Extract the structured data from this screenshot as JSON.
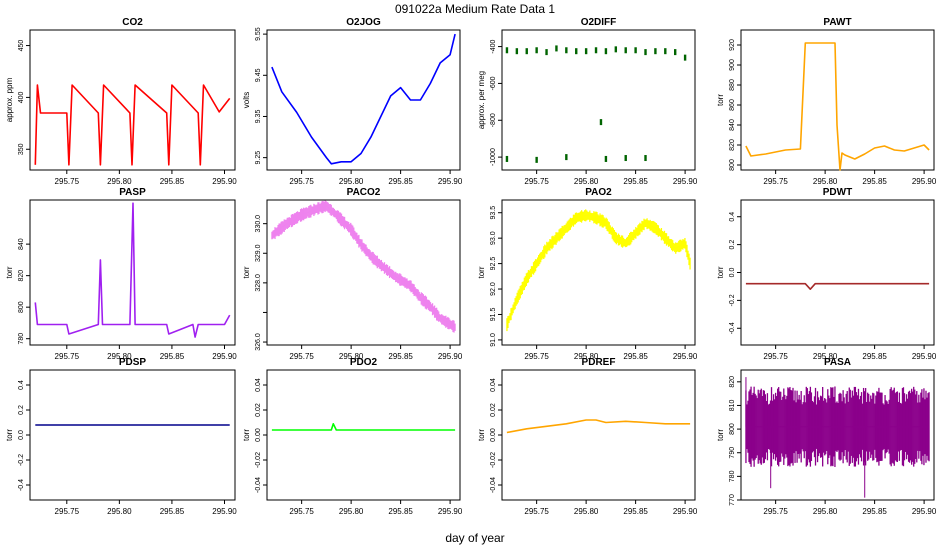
{
  "figure": {
    "title": "091022a   Medium Rate Data 1",
    "xlabel": "day of year"
  },
  "chart_data": [
    {
      "type": "line",
      "title": "CO2",
      "ylabel": "approx. ppm",
      "color": "#ff0000",
      "xlim": [
        295.715,
        295.91
      ],
      "ylim": [
        330,
        465
      ],
      "xticks": [
        295.75,
        295.8,
        295.85,
        295.9
      ],
      "xticklabels": [
        "295.75",
        "295.80",
        "295.85",
        "295.90"
      ],
      "yticks": [
        350,
        400,
        450
      ],
      "yticklabels": [
        "350",
        "400",
        "450"
      ],
      "x": [
        295.72,
        295.722,
        295.725,
        295.75,
        295.752,
        295.755,
        295.78,
        295.782,
        295.785,
        295.81,
        295.812,
        295.815,
        295.845,
        295.847,
        295.85,
        295.875,
        295.877,
        295.88,
        295.895,
        295.905
      ],
      "y": [
        335,
        412,
        385,
        385,
        335,
        412,
        385,
        335,
        412,
        385,
        335,
        412,
        385,
        335,
        412,
        385,
        335,
        412,
        386,
        399
      ]
    },
    {
      "type": "line",
      "title": "O2JOG",
      "ylabel": "volts",
      "color": "#0000ff",
      "xlim": [
        295.715,
        295.91
      ],
      "ylim": [
        9.22,
        9.56
      ],
      "xticks": [
        295.75,
        295.8,
        295.85,
        295.9
      ],
      "xticklabels": [
        "295.75",
        "295.80",
        "295.85",
        "295.90"
      ],
      "yticks": [
        9.25,
        9.35,
        9.45,
        9.55
      ],
      "yticklabels": [
        "9.25",
        "9.35",
        "9.45",
        "9.55"
      ],
      "x": [
        295.72,
        295.73,
        295.745,
        295.76,
        295.775,
        295.78,
        295.79,
        295.8,
        295.81,
        295.82,
        295.83,
        295.84,
        295.85,
        295.86,
        295.87,
        295.88,
        295.89,
        295.9,
        295.905
      ],
      "y": [
        9.47,
        9.41,
        9.36,
        9.3,
        9.25,
        9.235,
        9.24,
        9.24,
        9.26,
        9.3,
        9.35,
        9.4,
        9.42,
        9.39,
        9.39,
        9.43,
        9.48,
        9.5,
        9.55
      ]
    },
    {
      "type": "scatter",
      "title": "O2DIFF",
      "ylabel": "approx. per meg",
      "color": "#006400",
      "xlim": [
        295.715,
        295.91
      ],
      "ylim": [
        -1070,
        -310
      ],
      "xticks": [
        295.75,
        295.8,
        295.85,
        295.9
      ],
      "xticklabels": [
        "295.75",
        "295.80",
        "295.85",
        "295.90"
      ],
      "yticks": [
        -400,
        -600,
        -800,
        -1000
      ],
      "yticklabels": [
        "-400",
        "-600",
        "-800",
        "-1000"
      ],
      "x": [
        295.72,
        295.73,
        295.74,
        295.75,
        295.76,
        295.77,
        295.78,
        295.79,
        295.8,
        295.81,
        295.82,
        295.83,
        295.84,
        295.85,
        295.86,
        295.87,
        295.88,
        295.89,
        295.9,
        295.72,
        295.75,
        295.78,
        295.82,
        295.84,
        295.86,
        295.815
      ],
      "y": [
        -420,
        -425,
        -425,
        -420,
        -430,
        -410,
        -420,
        -425,
        -425,
        -420,
        -425,
        -415,
        -420,
        -420,
        -430,
        -425,
        -425,
        -430,
        -460,
        -1010,
        -1015,
        -1000,
        -1010,
        -1005,
        -1005,
        -810
      ]
    },
    {
      "type": "line",
      "title": "PAWT",
      "ylabel": "torr",
      "color": "#ffa500",
      "xlim": [
        295.715,
        295.91
      ],
      "ylim": [
        795,
        935
      ],
      "xticks": [
        295.75,
        295.8,
        295.85,
        295.9
      ],
      "xticklabels": [
        "295.75",
        "295.80",
        "295.85",
        "295.90"
      ],
      "yticks": [
        800,
        820,
        840,
        860,
        880,
        900,
        920
      ],
      "yticklabels": [
        "800",
        "820",
        "840",
        "860",
        "880",
        "900",
        "920"
      ],
      "x": [
        295.72,
        295.725,
        295.74,
        295.76,
        295.775,
        295.78,
        295.79,
        295.8,
        295.81,
        295.812,
        295.815,
        295.817,
        295.82,
        295.83,
        295.84,
        295.85,
        295.86,
        295.87,
        295.88,
        295.89,
        295.9,
        295.905
      ],
      "y": [
        819,
        809,
        811,
        815,
        816,
        922,
        922,
        922,
        922,
        840,
        795,
        812,
        810,
        806,
        811,
        817,
        819,
        815,
        814,
        817,
        820,
        815
      ]
    },
    {
      "type": "line",
      "title": "PASP",
      "ylabel": "torr",
      "color": "#a020f0",
      "xlim": [
        295.715,
        295.91
      ],
      "ylim": [
        776,
        868
      ],
      "xticks": [
        295.75,
        295.8,
        295.85,
        295.9
      ],
      "xticklabels": [
        "295.75",
        "295.80",
        "295.85",
        "295.90"
      ],
      "yticks": [
        780,
        800,
        820,
        840
      ],
      "yticklabels": [
        "780",
        "800",
        "820",
        "840"
      ],
      "x": [
        295.72,
        295.722,
        295.75,
        295.752,
        295.78,
        295.782,
        295.784,
        295.81,
        295.813,
        295.815,
        295.82,
        295.845,
        295.847,
        295.87,
        295.872,
        295.875,
        295.88,
        295.9,
        295.905
      ],
      "y": [
        803,
        789,
        789,
        783,
        789,
        830,
        789,
        789,
        866,
        789,
        789,
        789,
        783,
        789,
        781,
        789,
        789,
        789,
        795
      ]
    },
    {
      "type": "area",
      "title": "PACO2",
      "ylabel": "torr",
      "color": "#ee82ee",
      "xlim": [
        295.715,
        295.91
      ],
      "ylim": [
        325.9,
        330.8
      ],
      "xticks": [
        295.75,
        295.8,
        295.85,
        295.9
      ],
      "xticklabels": [
        "295.75",
        "295.80",
        "295.85",
        "295.90"
      ],
      "yticks": [
        326,
        327,
        328,
        329,
        330
      ],
      "yticklabels": [
        "326.0",
        "",
        "328.0",
        "329.0",
        "330.0"
      ],
      "x": [
        295.72,
        295.735,
        295.75,
        295.765,
        295.775,
        295.785,
        295.8,
        295.81,
        295.82,
        295.83,
        295.845,
        295.86,
        295.87,
        295.88,
        295.89,
        295.9,
        295.905
      ],
      "y": [
        329.6,
        330.0,
        330.3,
        330.5,
        330.6,
        330.3,
        329.8,
        329.3,
        328.9,
        328.6,
        328.2,
        327.9,
        327.5,
        327.2,
        326.8,
        326.6,
        326.5
      ]
    },
    {
      "type": "area",
      "title": "PAO2",
      "ylabel": "torr",
      "color": "#ffff00",
      "xlim": [
        295.715,
        295.91
      ],
      "ylim": [
        90.9,
        93.75
      ],
      "xticks": [
        295.75,
        295.8,
        295.85,
        295.9
      ],
      "xticklabels": [
        "295.75",
        "295.80",
        "295.85",
        "295.90"
      ],
      "yticks": [
        91.0,
        91.5,
        92.0,
        92.5,
        93.0,
        93.5
      ],
      "yticklabels": [
        "91.0",
        "91.5",
        "92.0",
        "92.5",
        "93.0",
        "93.5"
      ],
      "x": [
        295.72,
        295.73,
        295.74,
        295.75,
        295.76,
        295.77,
        295.78,
        295.79,
        295.8,
        295.81,
        295.82,
        295.83,
        295.84,
        295.85,
        295.86,
        295.87,
        295.88,
        295.89,
        295.9,
        295.905
      ],
      "y": [
        91.3,
        91.8,
        92.2,
        92.5,
        92.8,
        93.0,
        93.2,
        93.4,
        93.45,
        93.4,
        93.3,
        93.0,
        92.9,
        93.1,
        93.3,
        93.2,
        93.0,
        92.8,
        92.9,
        92.5
      ]
    },
    {
      "type": "line",
      "title": "PDWT",
      "ylabel": "torr",
      "color": "#a52a2a",
      "xlim": [
        295.715,
        295.91
      ],
      "ylim": [
        -0.52,
        0.52
      ],
      "xticks": [
        295.75,
        295.8,
        295.85,
        295.9
      ],
      "xticklabels": [
        "295.75",
        "295.80",
        "295.85",
        "295.90"
      ],
      "yticks": [
        -0.4,
        -0.2,
        0.0,
        0.2,
        0.4
      ],
      "yticklabels": [
        "-0.4",
        "-0.2",
        "0.0",
        "0.2",
        "0.4"
      ],
      "x": [
        295.72,
        295.78,
        295.785,
        295.79,
        295.85,
        295.905
      ],
      "y": [
        -0.08,
        -0.08,
        -0.12,
        -0.08,
        -0.08,
        -0.08
      ]
    },
    {
      "type": "line",
      "title": "PDSP",
      "ylabel": "torr",
      "color": "#00008b",
      "xlim": [
        295.715,
        295.91
      ],
      "ylim": [
        -0.52,
        0.52
      ],
      "xticks": [
        295.75,
        295.8,
        295.85,
        295.9
      ],
      "xticklabels": [
        "295.75",
        "295.80",
        "295.85",
        "295.90"
      ],
      "yticks": [
        -0.4,
        -0.2,
        0.0,
        0.2,
        0.4
      ],
      "yticklabels": [
        "-0.4",
        "-0.2",
        "0.0",
        "0.2",
        "0.4"
      ],
      "x": [
        295.72,
        295.905
      ],
      "y": [
        0.08,
        0.08
      ]
    },
    {
      "type": "line",
      "title": "PDO2",
      "ylabel": "torr",
      "color": "#00ff00",
      "xlim": [
        295.715,
        295.91
      ],
      "ylim": [
        -0.052,
        0.052
      ],
      "xticks": [
        295.75,
        295.8,
        295.85,
        295.9
      ],
      "xticklabels": [
        "295.75",
        "295.80",
        "295.85",
        "295.90"
      ],
      "yticks": [
        -0.04,
        -0.02,
        0.0,
        0.02,
        0.04
      ],
      "yticklabels": [
        "-0.04",
        "-0.02",
        "0.00",
        "0.02",
        "0.04"
      ],
      "x": [
        295.72,
        295.78,
        295.782,
        295.785,
        295.905
      ],
      "y": [
        0.004,
        0.004,
        0.009,
        0.004,
        0.004
      ]
    },
    {
      "type": "line",
      "title": "PDREF",
      "ylabel": "torr",
      "color": "#ffa500",
      "xlim": [
        295.715,
        295.91
      ],
      "ylim": [
        -0.052,
        0.052
      ],
      "xticks": [
        295.75,
        295.8,
        295.85,
        295.9
      ],
      "xticklabels": [
        "295.75",
        "295.80",
        "295.85",
        "295.90"
      ],
      "yticks": [
        -0.04,
        -0.02,
        0.0,
        0.02,
        0.04
      ],
      "yticklabels": [
        "-0.04",
        "-0.02",
        "0.00",
        "0.02",
        "0.04"
      ],
      "x": [
        295.72,
        295.74,
        295.76,
        295.78,
        295.8,
        295.81,
        295.82,
        295.84,
        295.86,
        295.88,
        295.9,
        295.905
      ],
      "y": [
        0.002,
        0.005,
        0.007,
        0.009,
        0.012,
        0.012,
        0.01,
        0.011,
        0.01,
        0.009,
        0.009,
        0.009
      ]
    },
    {
      "type": "area",
      "title": "PASA",
      "ylabel": "torr",
      "color": "#8b008b",
      "xlim": [
        295.715,
        295.91
      ],
      "ylim": [
        770,
        825
      ],
      "xticks": [
        295.75,
        295.8,
        295.85,
        295.9
      ],
      "xticklabels": [
        "295.75",
        "295.80",
        "295.85",
        "295.90"
      ],
      "yticks": [
        770,
        780,
        790,
        800,
        810,
        820
      ],
      "yticklabels": [
        "770",
        "780",
        "790",
        "800",
        "810",
        "820"
      ],
      "x": [
        295.72,
        295.905
      ],
      "y": [
        801,
        801
      ],
      "spikes": [
        {
          "x": 295.745,
          "y": 775
        },
        {
          "x": 295.84,
          "y": 771
        },
        {
          "x": 295.72,
          "y": 822
        }
      ]
    }
  ]
}
